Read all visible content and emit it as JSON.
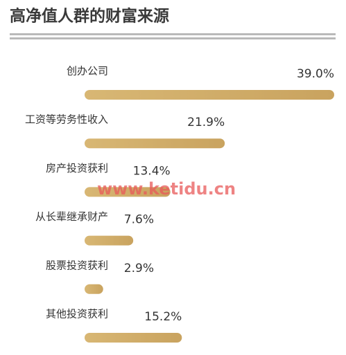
{
  "chart_data": {
    "type": "hbar",
    "title": "高净值人群的财富来源",
    "categories": [
      "创办公司",
      "工资等劳务性收入",
      "房产投资获利",
      "从长辈继承财产",
      "股票投资获利",
      "其他投资获利"
    ],
    "values": [
      39.0,
      21.9,
      13.4,
      7.6,
      2.9,
      15.2
    ],
    "value_labels": [
      "39.0%",
      "21.9%",
      "13.4%",
      "7.6%",
      "2.9%",
      "15.2%"
    ],
    "color": "#d4b26f"
  },
  "watermark": "www.ketidu.cn"
}
